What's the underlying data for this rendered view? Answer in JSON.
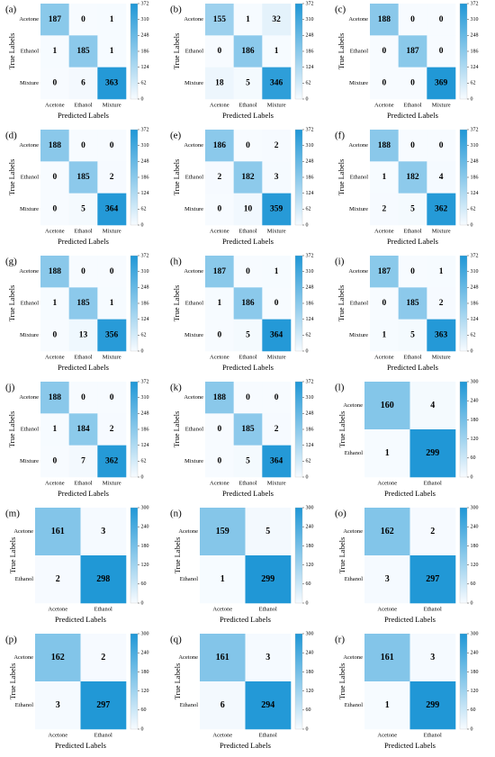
{
  "colormap": {
    "min_color": "#f7fbff",
    "max_color": "#1f97d6"
  },
  "chart_data": [
    {
      "panel": "(a)",
      "type": "heatmap",
      "title": "",
      "xlabel": "Predicted Labels",
      "ylabel": "True Labels",
      "x_categories": [
        "Acetone",
        "Ethanol",
        "Mixture"
      ],
      "y_categories": [
        "Acetone",
        "Ethanol",
        "Mixture"
      ],
      "values": [
        [
          187,
          0,
          1
        ],
        [
          1,
          185,
          1
        ],
        [
          0,
          6,
          363
        ]
      ],
      "colorbar": {
        "min": 0,
        "max": 372,
        "ticks": [
          "372",
          "310",
          "248",
          "186",
          "124",
          "62",
          "0"
        ]
      }
    },
    {
      "panel": "(b)",
      "type": "heatmap",
      "title": "",
      "xlabel": "Predicted Labels",
      "ylabel": "True Labels",
      "x_categories": [
        "Acetone",
        "Ethanol",
        "Mixture"
      ],
      "y_categories": [
        "Acetone",
        "Ethanol",
        "Mixture"
      ],
      "values": [
        [
          155,
          1,
          32
        ],
        [
          0,
          186,
          1
        ],
        [
          18,
          5,
          346
        ]
      ],
      "colorbar": {
        "min": 0,
        "max": 372,
        "ticks": [
          "372",
          "310",
          "248",
          "186",
          "124",
          "62",
          "0"
        ]
      }
    },
    {
      "panel": "(c)",
      "type": "heatmap",
      "title": "",
      "xlabel": "Predicted Labels",
      "ylabel": "True Labels",
      "x_categories": [
        "Acetone",
        "Ethanol",
        "Mixture"
      ],
      "y_categories": [
        "Acetone",
        "Ethanol",
        "Mixture"
      ],
      "values": [
        [
          188,
          0,
          0
        ],
        [
          0,
          187,
          0
        ],
        [
          0,
          0,
          369
        ]
      ],
      "colorbar": {
        "min": 0,
        "max": 372,
        "ticks": [
          "372",
          "310",
          "248",
          "186",
          "124",
          "62",
          "0"
        ]
      }
    },
    {
      "panel": "(d)",
      "type": "heatmap",
      "title": "",
      "xlabel": "Predicted Labels",
      "ylabel": "True Labels",
      "x_categories": [
        "Acetone",
        "Ethanol",
        "Mixture"
      ],
      "y_categories": [
        "Acetone",
        "Ethanol",
        "Mixture"
      ],
      "values": [
        [
          188,
          0,
          0
        ],
        [
          0,
          185,
          2
        ],
        [
          0,
          5,
          364
        ]
      ],
      "colorbar": {
        "min": 0,
        "max": 372,
        "ticks": [
          "372",
          "310",
          "248",
          "186",
          "124",
          "62",
          "0"
        ]
      }
    },
    {
      "panel": "(e)",
      "type": "heatmap",
      "title": "",
      "xlabel": "Predicted Labels",
      "ylabel": "True Labels",
      "x_categories": [
        "Acetone",
        "Ethanol",
        "Mixture"
      ],
      "y_categories": [
        "Acetone",
        "Ethanol",
        "Mixture"
      ],
      "values": [
        [
          186,
          0,
          2
        ],
        [
          2,
          182,
          3
        ],
        [
          0,
          10,
          359
        ]
      ],
      "colorbar": {
        "min": 0,
        "max": 372,
        "ticks": [
          "372",
          "310",
          "248",
          "186",
          "124",
          "62",
          "0"
        ]
      }
    },
    {
      "panel": "(f)",
      "type": "heatmap",
      "title": "",
      "xlabel": "Predicted Labels",
      "ylabel": "True Labels",
      "x_categories": [
        "Acetone",
        "Ethanol",
        "Mixture"
      ],
      "y_categories": [
        "Acetone",
        "Ethanol",
        "Mixture"
      ],
      "values": [
        [
          188,
          0,
          0
        ],
        [
          1,
          182,
          4
        ],
        [
          2,
          5,
          362
        ]
      ],
      "colorbar": {
        "min": 0,
        "max": 372,
        "ticks": [
          "372",
          "310",
          "248",
          "186",
          "124",
          "62",
          "0"
        ]
      }
    },
    {
      "panel": "(g)",
      "type": "heatmap",
      "title": "",
      "xlabel": "Predicted Labels",
      "ylabel": "True Labels",
      "x_categories": [
        "Acetone",
        "Ethanol",
        "Mixture"
      ],
      "y_categories": [
        "Acetone",
        "Ethanol",
        "Mixture"
      ],
      "values": [
        [
          188,
          0,
          0
        ],
        [
          1,
          185,
          1
        ],
        [
          0,
          13,
          356
        ]
      ],
      "colorbar": {
        "min": 0,
        "max": 372,
        "ticks": [
          "372",
          "310",
          "248",
          "186",
          "124",
          "62",
          "0"
        ]
      }
    },
    {
      "panel": "(h)",
      "type": "heatmap",
      "title": "",
      "xlabel": "Predicted Labels",
      "ylabel": "True Labels",
      "x_categories": [
        "Acetone",
        "Ethanol",
        "Mixture"
      ],
      "y_categories": [
        "Acetone",
        "Ethanol",
        "Mixture"
      ],
      "values": [
        [
          187,
          0,
          1
        ],
        [
          1,
          186,
          0
        ],
        [
          0,
          5,
          364
        ]
      ],
      "colorbar": {
        "min": 0,
        "max": 372,
        "ticks": [
          "372",
          "310",
          "248",
          "186",
          "124",
          "62",
          "0"
        ]
      }
    },
    {
      "panel": "(i)",
      "type": "heatmap",
      "title": "",
      "xlabel": "Predicted Labels",
      "ylabel": "True Labels",
      "x_categories": [
        "Acetone",
        "Ethanol",
        "Mixture"
      ],
      "y_categories": [
        "Acetone",
        "Ethanol",
        "Mixture"
      ],
      "values": [
        [
          187,
          0,
          1
        ],
        [
          0,
          185,
          2
        ],
        [
          1,
          5,
          363
        ]
      ],
      "colorbar": {
        "min": 0,
        "max": 372,
        "ticks": [
          "372",
          "310",
          "248",
          "186",
          "124",
          "62",
          "0"
        ]
      }
    },
    {
      "panel": "(j)",
      "type": "heatmap",
      "title": "",
      "xlabel": "Predicted Labels",
      "ylabel": "True Labels",
      "x_categories": [
        "Acetone",
        "Ethanol",
        "Mixture"
      ],
      "y_categories": [
        "Acetone",
        "Ethanol",
        "Mixture"
      ],
      "values": [
        [
          188,
          0,
          0
        ],
        [
          1,
          184,
          2
        ],
        [
          0,
          7,
          362
        ]
      ],
      "colorbar": {
        "min": 0,
        "max": 372,
        "ticks": [
          "372",
          "310",
          "248",
          "186",
          "124",
          "62",
          "0"
        ]
      }
    },
    {
      "panel": "(k)",
      "type": "heatmap",
      "title": "",
      "xlabel": "Predicted Labels",
      "ylabel": "True Labels",
      "x_categories": [
        "Acetone",
        "Ethanol",
        "Mixture"
      ],
      "y_categories": [
        "Acetone",
        "Ethanol",
        "Mixture"
      ],
      "values": [
        [
          188,
          0,
          0
        ],
        [
          0,
          185,
          2
        ],
        [
          0,
          5,
          364
        ]
      ],
      "colorbar": {
        "min": 0,
        "max": 372,
        "ticks": [
          "372",
          "310",
          "248",
          "186",
          "124",
          "62",
          "0"
        ]
      }
    },
    {
      "panel": "(l)",
      "type": "heatmap",
      "title": "",
      "xlabel": "Predicted Labels",
      "ylabel": "True Labels",
      "x_categories": [
        "Acetone",
        "Ethanol"
      ],
      "y_categories": [
        "Acetone",
        "Ethanol"
      ],
      "values": [
        [
          160,
          4
        ],
        [
          1,
          299
        ]
      ],
      "colorbar": {
        "min": 0,
        "max": 300,
        "ticks": [
          "300",
          "240",
          "180",
          "120",
          "60",
          "0"
        ]
      }
    },
    {
      "panel": "(m)",
      "type": "heatmap",
      "title": "",
      "xlabel": "Predicted Labels",
      "ylabel": "True Labels",
      "x_categories": [
        "Acetone",
        "Ethanol"
      ],
      "y_categories": [
        "Acetone",
        "Ethanol"
      ],
      "values": [
        [
          161,
          3
        ],
        [
          2,
          298
        ]
      ],
      "colorbar": {
        "min": 0,
        "max": 300,
        "ticks": [
          "300",
          "240",
          "180",
          "120",
          "60",
          "0"
        ]
      }
    },
    {
      "panel": "(n)",
      "type": "heatmap",
      "title": "",
      "xlabel": "Predicted Labels",
      "ylabel": "True Labels",
      "x_categories": [
        "Acetone",
        "Ethanol"
      ],
      "y_categories": [
        "Acetone",
        "Ethanol"
      ],
      "values": [
        [
          159,
          5
        ],
        [
          1,
          299
        ]
      ],
      "colorbar": {
        "min": 0,
        "max": 300,
        "ticks": [
          "300",
          "240",
          "180",
          "120",
          "60",
          "0"
        ]
      }
    },
    {
      "panel": "(o)",
      "type": "heatmap",
      "title": "",
      "xlabel": "Predicted Labels",
      "ylabel": "True Labels",
      "x_categories": [
        "Acetone",
        "Ethanol"
      ],
      "y_categories": [
        "Acetone",
        "Ethanol"
      ],
      "values": [
        [
          162,
          2
        ],
        [
          3,
          297
        ]
      ],
      "colorbar": {
        "min": 0,
        "max": 300,
        "ticks": [
          "300",
          "240",
          "180",
          "120",
          "60",
          "0"
        ]
      }
    },
    {
      "panel": "(p)",
      "type": "heatmap",
      "title": "",
      "xlabel": "Predicted Labels",
      "ylabel": "True Labels",
      "x_categories": [
        "Acetone",
        "Ethanol"
      ],
      "y_categories": [
        "Acetone",
        "Ethanol"
      ],
      "values": [
        [
          162,
          2
        ],
        [
          3,
          297
        ]
      ],
      "colorbar": {
        "min": 0,
        "max": 300,
        "ticks": [
          "300",
          "240",
          "180",
          "120",
          "60",
          "0"
        ]
      }
    },
    {
      "panel": "(q)",
      "type": "heatmap",
      "title": "",
      "xlabel": "Predicted Labels",
      "ylabel": "True Labels",
      "x_categories": [
        "Acetone",
        "Ethanol"
      ],
      "y_categories": [
        "Acetone",
        "Ethanol"
      ],
      "values": [
        [
          161,
          3
        ],
        [
          6,
          294
        ]
      ],
      "colorbar": {
        "min": 0,
        "max": 300,
        "ticks": [
          "300",
          "240",
          "180",
          "120",
          "60",
          "0"
        ]
      }
    },
    {
      "panel": "(r)",
      "type": "heatmap",
      "title": "",
      "xlabel": "Predicted Labels",
      "ylabel": "True Labels",
      "x_categories": [
        "Acetone",
        "Ethanol"
      ],
      "y_categories": [
        "Acetone",
        "Ethanol"
      ],
      "values": [
        [
          161,
          3
        ],
        [
          1,
          299
        ]
      ],
      "colorbar": {
        "min": 0,
        "max": 300,
        "ticks": [
          "300",
          "240",
          "180",
          "120",
          "60",
          "0"
        ]
      }
    }
  ]
}
